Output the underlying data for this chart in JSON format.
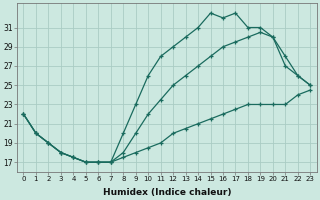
{
  "xlabel": "Humidex (Indice chaleur)",
  "bg_color": "#cce8e0",
  "grid_color": "#aaccc4",
  "line_color": "#1a6b5e",
  "x_ticks": [
    0,
    1,
    2,
    3,
    4,
    5,
    6,
    7,
    8,
    9,
    10,
    11,
    12,
    13,
    14,
    15,
    16,
    17,
    18,
    19,
    20,
    21,
    22,
    23
  ],
  "y_ticks": [
    17,
    19,
    21,
    23,
    25,
    27,
    29,
    31
  ],
  "ylim": [
    16.0,
    33.5
  ],
  "xlim": [
    -0.5,
    23.5
  ],
  "line1_x": [
    0,
    1,
    2,
    3,
    4,
    5,
    6,
    7,
    8,
    9,
    10,
    11,
    12,
    13,
    14,
    15,
    16,
    17,
    18,
    19,
    20,
    21,
    22,
    23
  ],
  "line1_y": [
    22,
    20,
    19,
    18,
    17.5,
    17,
    17,
    17,
    20,
    23,
    26,
    28,
    29,
    30,
    31,
    32.5,
    32,
    32.5,
    31,
    31,
    30,
    28,
    26,
    25
  ],
  "line2_x": [
    0,
    1,
    2,
    3,
    4,
    5,
    6,
    7,
    8,
    9,
    10,
    11,
    12,
    13,
    14,
    15,
    16,
    17,
    18,
    19,
    20,
    21,
    22,
    23
  ],
  "line2_y": [
    22,
    20,
    19,
    18,
    17.5,
    17,
    17,
    17,
    18,
    20,
    22,
    23.5,
    25,
    26,
    27,
    28,
    29,
    29.5,
    30,
    30.5,
    30,
    27,
    26,
    25
  ],
  "line3_x": [
    0,
    1,
    2,
    3,
    4,
    5,
    6,
    7,
    8,
    9,
    10,
    11,
    12,
    13,
    14,
    15,
    16,
    17,
    18,
    19,
    20,
    21,
    22,
    23
  ],
  "line3_y": [
    22,
    20,
    19,
    18,
    17.5,
    17,
    17,
    17,
    17.5,
    18,
    18.5,
    19,
    20,
    20.5,
    21,
    21.5,
    22,
    22.5,
    23,
    23,
    23,
    23,
    24,
    24.5
  ]
}
